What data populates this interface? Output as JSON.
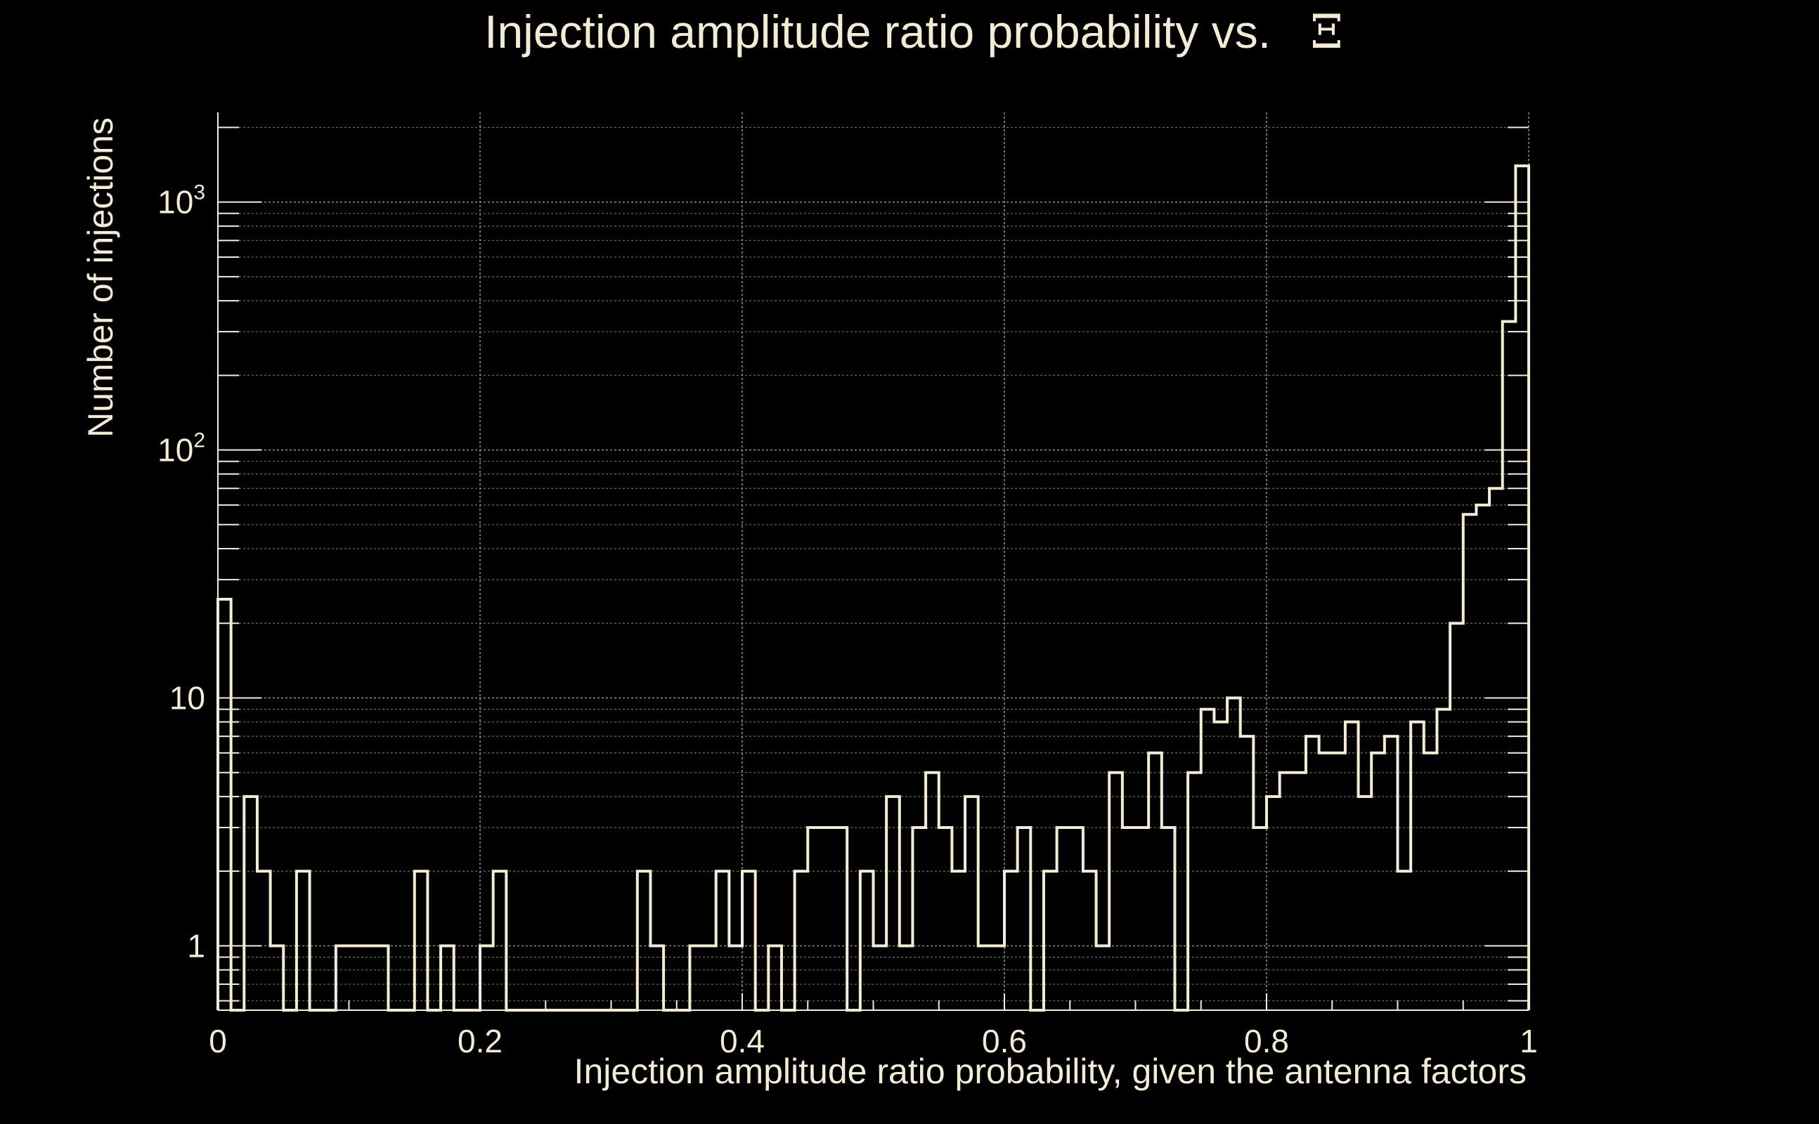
{
  "chart_data": {
    "type": "bar",
    "style": "step-histogram",
    "title": "Injection amplitude ratio probability vs.",
    "title_symbol": "Ξ",
    "xlabel": "Injection amplitude ratio probability, given the antenna factors",
    "ylabel": "Number of injections",
    "xlim": [
      0,
      1
    ],
    "ylim": [
      0.55,
      2300
    ],
    "yscale": "log",
    "grid": true,
    "x_ticks": [
      {
        "value": 0,
        "label": "0"
      },
      {
        "value": 0.2,
        "label": "0.2"
      },
      {
        "value": 0.4,
        "label": "0.4"
      },
      {
        "value": 0.6,
        "label": "0.6"
      },
      {
        "value": 0.8,
        "label": "0.8"
      },
      {
        "value": 1,
        "label": "1"
      }
    ],
    "y_ticks": [
      {
        "value": 1,
        "label": "1",
        "exp": ""
      },
      {
        "value": 10,
        "label": "10",
        "exp": ""
      },
      {
        "value": 100,
        "label": "10",
        "exp": "2"
      },
      {
        "value": 1000,
        "label": "10",
        "exp": "3"
      }
    ],
    "bin_width": 0.01,
    "bins_start": 0,
    "values": [
      25,
      0,
      4,
      2,
      1,
      0,
      2,
      0,
      0,
      1,
      1,
      1,
      1,
      0,
      0,
      2,
      0,
      1,
      0,
      0,
      1,
      2,
      0,
      0,
      0,
      0,
      0,
      0,
      0,
      0,
      0,
      0,
      2,
      1,
      0,
      0,
      1,
      1,
      2,
      1,
      2,
      0,
      1,
      0,
      2,
      3,
      3,
      3,
      0,
      2,
      1,
      4,
      1,
      3,
      5,
      3,
      2,
      4,
      1,
      1,
      2,
      3,
      0,
      2,
      3,
      3,
      2,
      1,
      5,
      3,
      3,
      6,
      3,
      0,
      5,
      9,
      8,
      10,
      7,
      3,
      4,
      5,
      5,
      7,
      6,
      6,
      8,
      4,
      6,
      7,
      2,
      8,
      6,
      9,
      20,
      55,
      60,
      70,
      330,
      1400
    ],
    "line_color": "#f4ecd2",
    "background_color": "#000000"
  }
}
